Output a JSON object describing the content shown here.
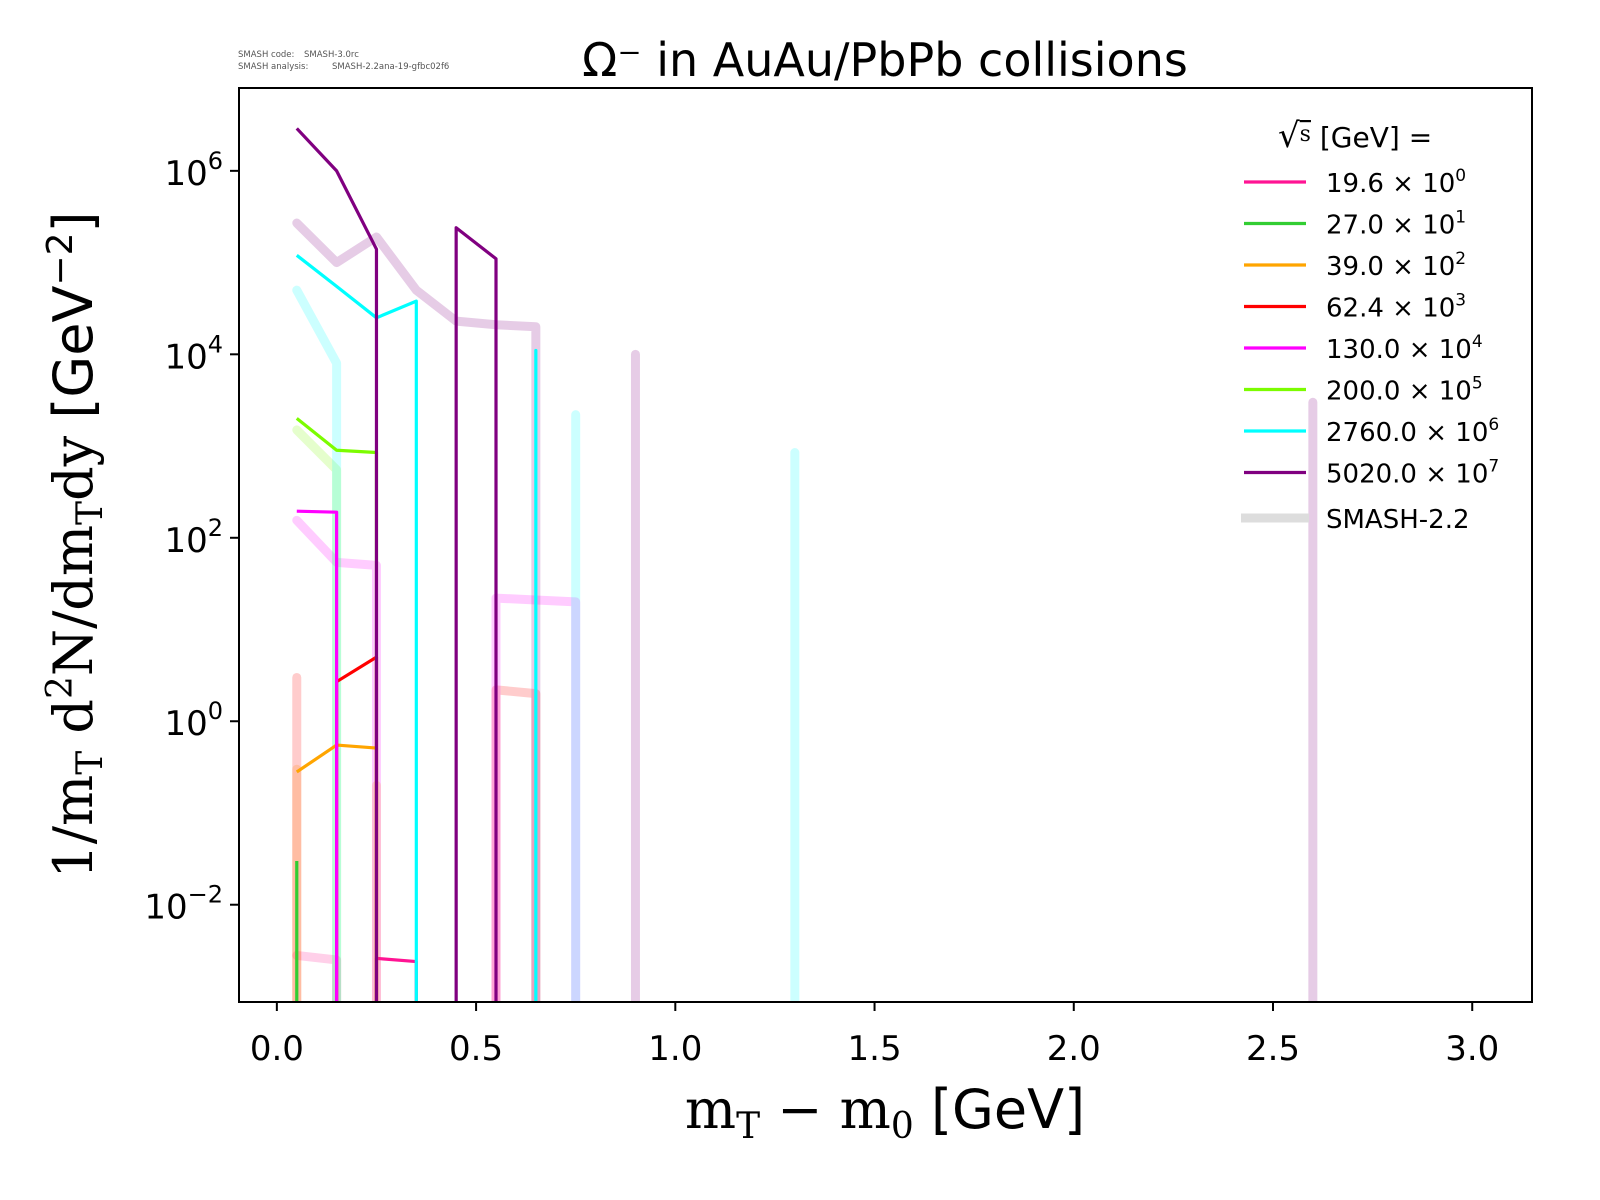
{
  "header": {
    "code_label": "SMASH code:",
    "code_value": "SMASH-3.0rc",
    "analysis_label": "SMASH analysis:",
    "analysis_value": "SMASH-2.2ana-19-gfbc02f6"
  },
  "chart_data": {
    "type": "line",
    "title": "Ω⁻ in AuAu/PbPb collisions",
    "xlabel": {
      "main": "m",
      "sub": "T",
      "minus": " − m",
      "sub2": "0",
      "unit": " [GeV]"
    },
    "ylabel": {
      "p1": "1/m",
      "s1": "T",
      "p2": " d",
      "sup": "2",
      "p3": "N/dm",
      "s2": "T",
      "p4": "dy",
      "unit": " [GeV",
      "unit_sup": "−2",
      "unit_end": "]"
    },
    "xlim": [
      -0.095,
      3.15
    ],
    "ylim": [
      0.00087,
      8000000
    ],
    "yscale": "log",
    "xticks": [
      "0.0",
      "0.5",
      "1.0",
      "1.5",
      "2.0",
      "2.5",
      "3.0"
    ],
    "xtick_values": [
      0,
      0.5,
      1.0,
      1.5,
      2.0,
      2.5,
      3.0
    ],
    "yticks": [
      {
        "base": "10",
        "exp": "−2",
        "value": 0.01
      },
      {
        "base": "10",
        "exp": "0",
        "value": 1
      },
      {
        "base": "10",
        "exp": "2",
        "value": 100
      },
      {
        "base": "10",
        "exp": "4",
        "value": 10000
      },
      {
        "base": "10",
        "exp": "6",
        "value": 1000000
      }
    ],
    "grid": false,
    "legend_placement": "top-right",
    "legend_title": {
      "sqrt": "√",
      "s": "s",
      "rest": " [GeV] ="
    },
    "x": [
      0.05,
      0.15,
      0.25,
      0.35,
      0.45,
      0.55,
      0.65,
      0.75,
      0.9,
      1.3,
      2.6
    ],
    "series": [
      {
        "name": "19.6",
        "exp": "0",
        "color": "#ff1493",
        "values": [
          0,
          0,
          0.0026,
          0.0024,
          0,
          0,
          0,
          0,
          0,
          0,
          0
        ],
        "smash22": [
          0.0028,
          0.0025,
          0,
          0,
          0,
          0,
          0,
          0,
          0,
          0,
          0
        ]
      },
      {
        "name": "27.0",
        "exp": "1",
        "color": "#32cd32",
        "values": [
          0.03,
          0,
          0,
          0,
          0,
          0,
          0,
          0,
          0,
          0,
          0
        ],
        "smash22": [
          0,
          0,
          0,
          0,
          0,
          0,
          0,
          0,
          0,
          0,
          0
        ]
      },
      {
        "name": "39.0",
        "exp": "2",
        "color": "#ffa500",
        "values": [
          0.28,
          0.55,
          0.51,
          0,
          0,
          0,
          0,
          0,
          0,
          0,
          0
        ],
        "smash22": [
          0.3,
          0,
          0.2,
          0,
          0,
          0,
          0,
          0,
          0,
          0,
          0
        ]
      },
      {
        "name": "62.4",
        "exp": "3",
        "color": "#ff0000",
        "values": [
          0,
          2.7,
          5.0,
          0,
          0,
          0,
          0,
          0,
          0,
          0,
          0
        ],
        "smash22": [
          3,
          0,
          0,
          0,
          0,
          2.2,
          2.0,
          0,
          0,
          0,
          0
        ]
      },
      {
        "name": "130.0",
        "exp": "4",
        "color": "#ff00ff",
        "values": [
          195,
          190,
          0,
          0,
          0,
          0,
          0,
          0,
          0,
          0,
          0
        ],
        "smash22": [
          155,
          54,
          50,
          0,
          0,
          22,
          21,
          20,
          0,
          0,
          0
        ]
      },
      {
        "name": "200.0",
        "exp": "5",
        "color": "#7cfc00",
        "values": [
          2000,
          900,
          850,
          0,
          0,
          0,
          0,
          0,
          0,
          0,
          0
        ],
        "smash22": [
          1500,
          550,
          0,
          0,
          0,
          0,
          0,
          0,
          0,
          0,
          0
        ]
      },
      {
        "name": "2760.0",
        "exp": "6",
        "color": "#00ffff",
        "values": [
          120000,
          55000,
          25000,
          38000,
          0,
          0,
          11000,
          0,
          0,
          0,
          0
        ],
        "smash22": [
          50000,
          8000,
          0,
          0,
          0,
          0,
          0,
          2200,
          0,
          850,
          0
        ]
      },
      {
        "name": "5020.0",
        "exp": "7",
        "color": "#800080",
        "values": [
          2900000,
          1000000,
          140000,
          0,
          240000,
          110000,
          0,
          0,
          0,
          0,
          0
        ],
        "smash22": [
          270000,
          100000,
          190000,
          50000,
          23000,
          21000,
          20000,
          0,
          10000,
          0,
          3000
        ]
      }
    ],
    "reference_label": "SMASH-2.2",
    "reference_color": "#dddddd",
    "times_sign": "×",
    "times_base": "10"
  }
}
